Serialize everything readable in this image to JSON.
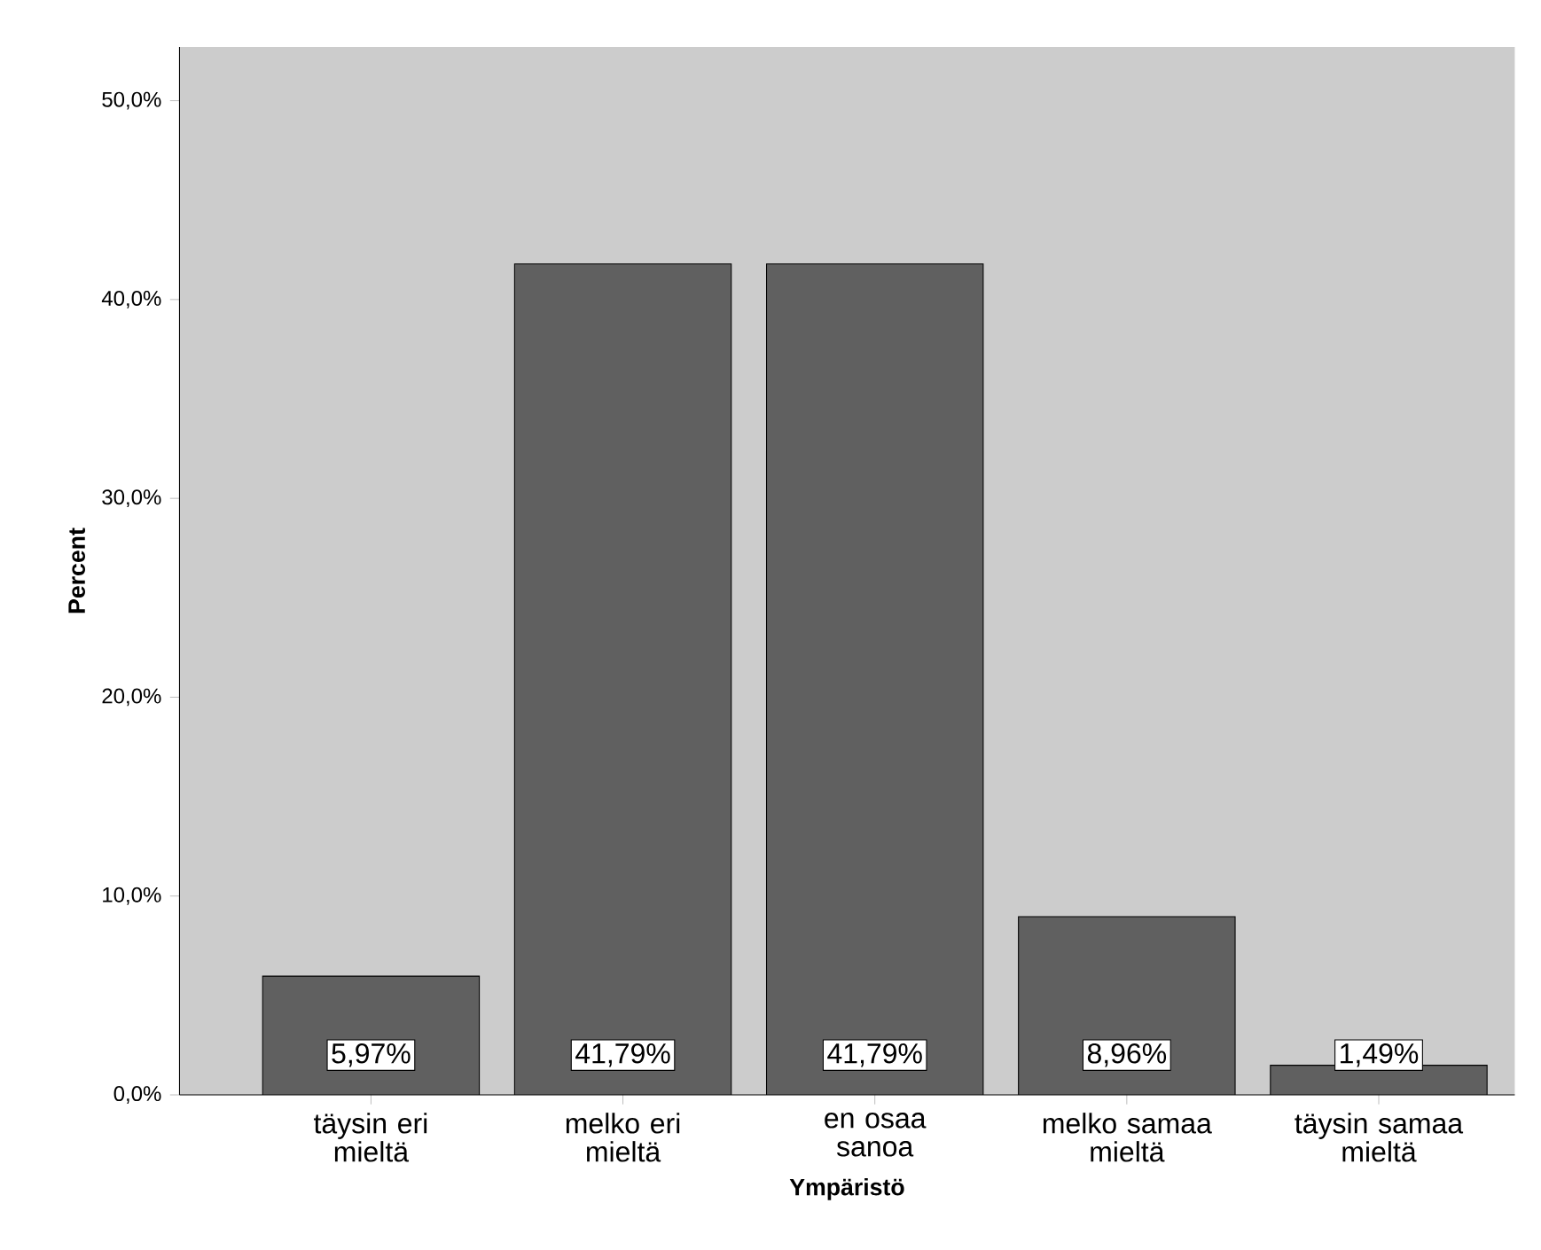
{
  "chart_data": {
    "type": "bar",
    "xlabel": "Ympäristö",
    "ylabel": "Percent",
    "categories": [
      "täysin eri mieltä",
      "melko eri mieltä",
      "en osaa sanoa",
      "melko samaa mieltä",
      "täysin samaa mieltä"
    ],
    "values": [
      5.97,
      41.79,
      41.79,
      8.96,
      1.49
    ],
    "value_labels": [
      "5,97%",
      "41,79%",
      "41,79%",
      "8,96%",
      "1,49%"
    ],
    "color": "#606060",
    "ylim": [
      0,
      52.7
    ],
    "yticks": [
      {
        "value": 0,
        "label": "0,0%"
      },
      {
        "value": 10,
        "label": "10,0%"
      },
      {
        "value": 20,
        "label": "20,0%"
      },
      {
        "value": 30,
        "label": "30,0%"
      },
      {
        "value": 40,
        "label": "40,0%"
      },
      {
        "value": 50,
        "label": "50,0%"
      }
    ],
    "grid": false
  }
}
